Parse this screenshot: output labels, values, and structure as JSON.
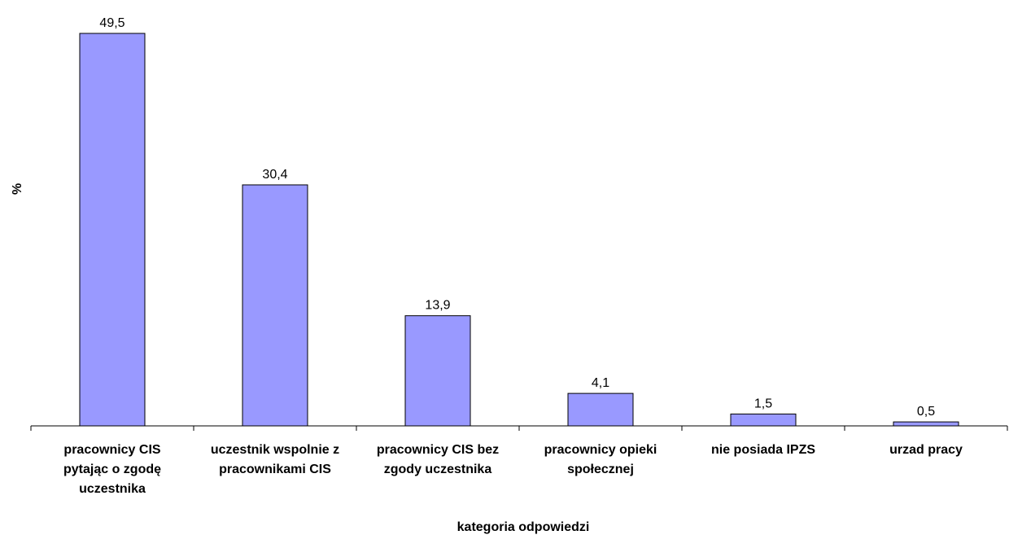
{
  "chart_data": {
    "type": "bar",
    "categories": [
      [
        "pracownicy CIS",
        "pytając o zgodę",
        "uczestnika"
      ],
      [
        "uczestnik wspolnie z",
        "pracownikami CIS"
      ],
      [
        "pracownicy CIS bez",
        "zgody uczestnika"
      ],
      [
        "pracownicy opieki",
        "społecznej"
      ],
      [
        "nie posiada IPZS"
      ],
      [
        "urzad pracy"
      ]
    ],
    "values": [
      49.5,
      30.4,
      13.9,
      4.1,
      1.5,
      0.5
    ],
    "value_labels": [
      "49,5",
      "30,4",
      "13,9",
      "4,1",
      "1,5",
      "0,5"
    ],
    "xlabel": "kategoria odpowiedzi",
    "ylabel": "%",
    "ylim": [
      0,
      49.5
    ],
    "grid": false,
    "legend": "none",
    "bar_color": "#9999ff",
    "bar_stroke": "#000000"
  }
}
